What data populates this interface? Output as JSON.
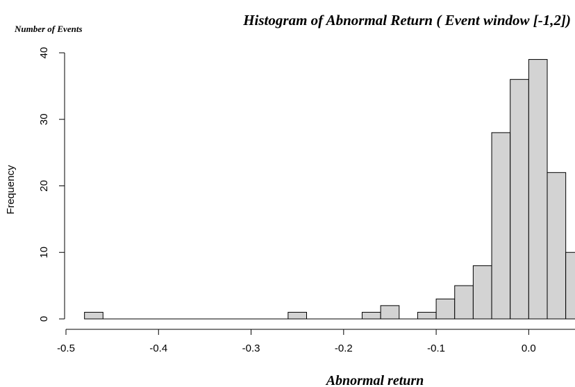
{
  "chart_data": {
    "type": "bar",
    "title": "Histogram of Abnormal Return ( Event window [-1,2])",
    "corner_label": "Number of Events",
    "xlabel": "Abnormal return",
    "ylabel": "Frequency",
    "bin_width": 0.02,
    "bins": [
      {
        "start": -0.48,
        "end": -0.46,
        "count": 1
      },
      {
        "start": -0.26,
        "end": -0.24,
        "count": 1
      },
      {
        "start": -0.18,
        "end": -0.16,
        "count": 1
      },
      {
        "start": -0.16,
        "end": -0.14,
        "count": 2
      },
      {
        "start": -0.12,
        "end": -0.1,
        "count": 1
      },
      {
        "start": -0.1,
        "end": -0.08,
        "count": 3
      },
      {
        "start": -0.08,
        "end": -0.06,
        "count": 5
      },
      {
        "start": -0.06,
        "end": -0.04,
        "count": 8
      },
      {
        "start": -0.04,
        "end": -0.02,
        "count": 28
      },
      {
        "start": -0.02,
        "end": 0.0,
        "count": 36
      },
      {
        "start": 0.0,
        "end": 0.02,
        "count": 39
      },
      {
        "start": 0.02,
        "end": 0.04,
        "count": 22
      },
      {
        "start": 0.04,
        "end": 0.06,
        "count": 10
      }
    ],
    "baseline_range": [
      -0.48,
      0.06
    ],
    "xlim": [
      -0.5,
      0.05
    ],
    "ylim": [
      0,
      40
    ],
    "x_ticks": [
      -0.5,
      -0.4,
      -0.3,
      -0.2,
      -0.1,
      0.0
    ],
    "x_tick_labels": [
      "-0.5",
      "-0.4",
      "-0.3",
      "-0.2",
      "-0.1",
      "0.0"
    ],
    "y_ticks": [
      0,
      10,
      20,
      30,
      40
    ],
    "y_tick_labels": [
      "0",
      "10",
      "20",
      "30",
      "40"
    ],
    "bar_fill": "#d3d3d3",
    "bar_stroke": "#000000",
    "grid": false,
    "legend": "none"
  }
}
